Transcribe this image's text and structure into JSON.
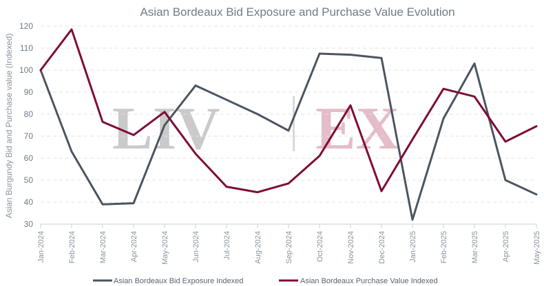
{
  "watermark": {
    "left": "LIV",
    "right": "EX",
    "left_color": "#c8c8c8",
    "right_color": "#e4b9c6"
  },
  "chart_data": {
    "type": "line",
    "title": "Asian Bordeaux Bid Exposure and Purchase Value Evolution",
    "xlabel": "",
    "ylabel": "Asian Burgundy Bid and Purchase value (Indexed)",
    "ylim": [
      30,
      120
    ],
    "yticks": [
      30,
      40,
      50,
      60,
      70,
      80,
      90,
      100,
      110,
      120
    ],
    "grid": true,
    "legend_position": "bottom",
    "categories": [
      "Jan-2024",
      "Feb-2024",
      "Mar-2024",
      "Apr-2024",
      "May-2024",
      "Jun-2024",
      "Jul-2024",
      "Aug-2024",
      "Sep-2024",
      "Oct-2024",
      "Nov-2024",
      "Dec-2024",
      "Jan-2025",
      "Feb-2025",
      "Mar-2025",
      "Apr-2025",
      "May-2025"
    ],
    "series": [
      {
        "name": "Asian Bordeaux Bid Exposure Indexed",
        "color": "#4b5560",
        "values": [
          100,
          63,
          39,
          39.5,
          75,
          93,
          86.5,
          80,
          72.5,
          107.5,
          107,
          105.5,
          32,
          78,
          103,
          50,
          43.5
        ]
      },
      {
        "name": "Asian Bordeaux Purchase Value Indexed",
        "color": "#7e0c37",
        "values": [
          100,
          118.5,
          76.5,
          70.5,
          81,
          62,
          47,
          44.5,
          48.5,
          61,
          84,
          45,
          68.5,
          91.5,
          88,
          67.5,
          74.5
        ]
      }
    ]
  }
}
